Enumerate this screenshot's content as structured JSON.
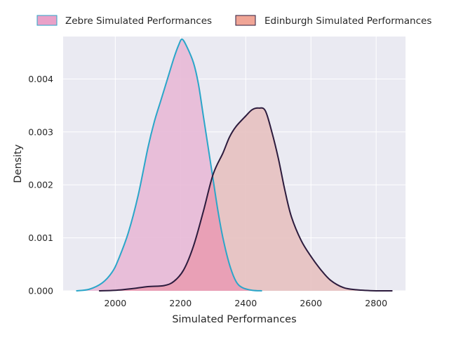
{
  "chart_data": {
    "type": "area",
    "chart_kind": "kde-density",
    "xlabel": "Simulated Performances",
    "ylabel": "Density",
    "xlim": [
      1840,
      2890
    ],
    "ylim": [
      0,
      0.0048
    ],
    "xticks": [
      2000,
      2200,
      2400,
      2600,
      2800
    ],
    "xtick_labels": [
      "2000",
      "2200",
      "2400",
      "2600",
      "2800"
    ],
    "yticks": [
      0,
      0.001,
      0.002,
      0.003,
      0.004
    ],
    "ytick_labels": [
      "0.000",
      "0.001",
      "0.002",
      "0.003",
      "0.004"
    ],
    "grid": true,
    "legend_position": "top-center-outside",
    "colors": {
      "background": "#eaeaf2",
      "grid": "#ffffff",
      "overlap": "#e9a0b6"
    },
    "series": [
      {
        "name": "Zebre Simulated Performances",
        "line_color": "#2aa6c9",
        "fill_color": "#e8b9d6",
        "legend_patch": "#e9a1c8",
        "x": [
          1880,
          1920,
          1960,
          1990,
          2010,
          2040,
          2070,
          2100,
          2120,
          2140,
          2160,
          2180,
          2195,
          2205,
          2220,
          2240,
          2255,
          2270,
          2285,
          2300,
          2315,
          2330,
          2350,
          2370,
          2390,
          2420,
          2450
        ],
        "y": [
          0.0,
          3e-05,
          0.00015,
          0.00035,
          0.0006,
          0.0011,
          0.0018,
          0.0027,
          0.0032,
          0.0036,
          0.004,
          0.0044,
          0.00465,
          0.00475,
          0.0046,
          0.0043,
          0.0039,
          0.0033,
          0.0027,
          0.0021,
          0.0015,
          0.001,
          0.0005,
          0.00018,
          6e-05,
          1e-05,
          0.0
        ]
      },
      {
        "name": "Edinburgh Simulated Performances",
        "line_color": "#2c1b3d",
        "fill_color": "#e7c1c0",
        "legend_patch": "#f0a596",
        "x": [
          1950,
          2000,
          2050,
          2100,
          2150,
          2180,
          2210,
          2240,
          2270,
          2300,
          2330,
          2350,
          2370,
          2400,
          2420,
          2440,
          2460,
          2480,
          2500,
          2520,
          2540,
          2570,
          2600,
          2630,
          2660,
          2700,
          2740,
          2800,
          2850
        ],
        "y": [
          0.0,
          1e-05,
          4e-05,
          8e-05,
          0.0001,
          0.00018,
          0.0004,
          0.00085,
          0.0015,
          0.0022,
          0.0026,
          0.0029,
          0.0031,
          0.0033,
          0.00342,
          0.00345,
          0.0034,
          0.003,
          0.0025,
          0.0019,
          0.0014,
          0.00095,
          0.00065,
          0.0004,
          0.0002,
          6e-05,
          2e-05,
          0.0,
          0.0
        ]
      }
    ]
  }
}
